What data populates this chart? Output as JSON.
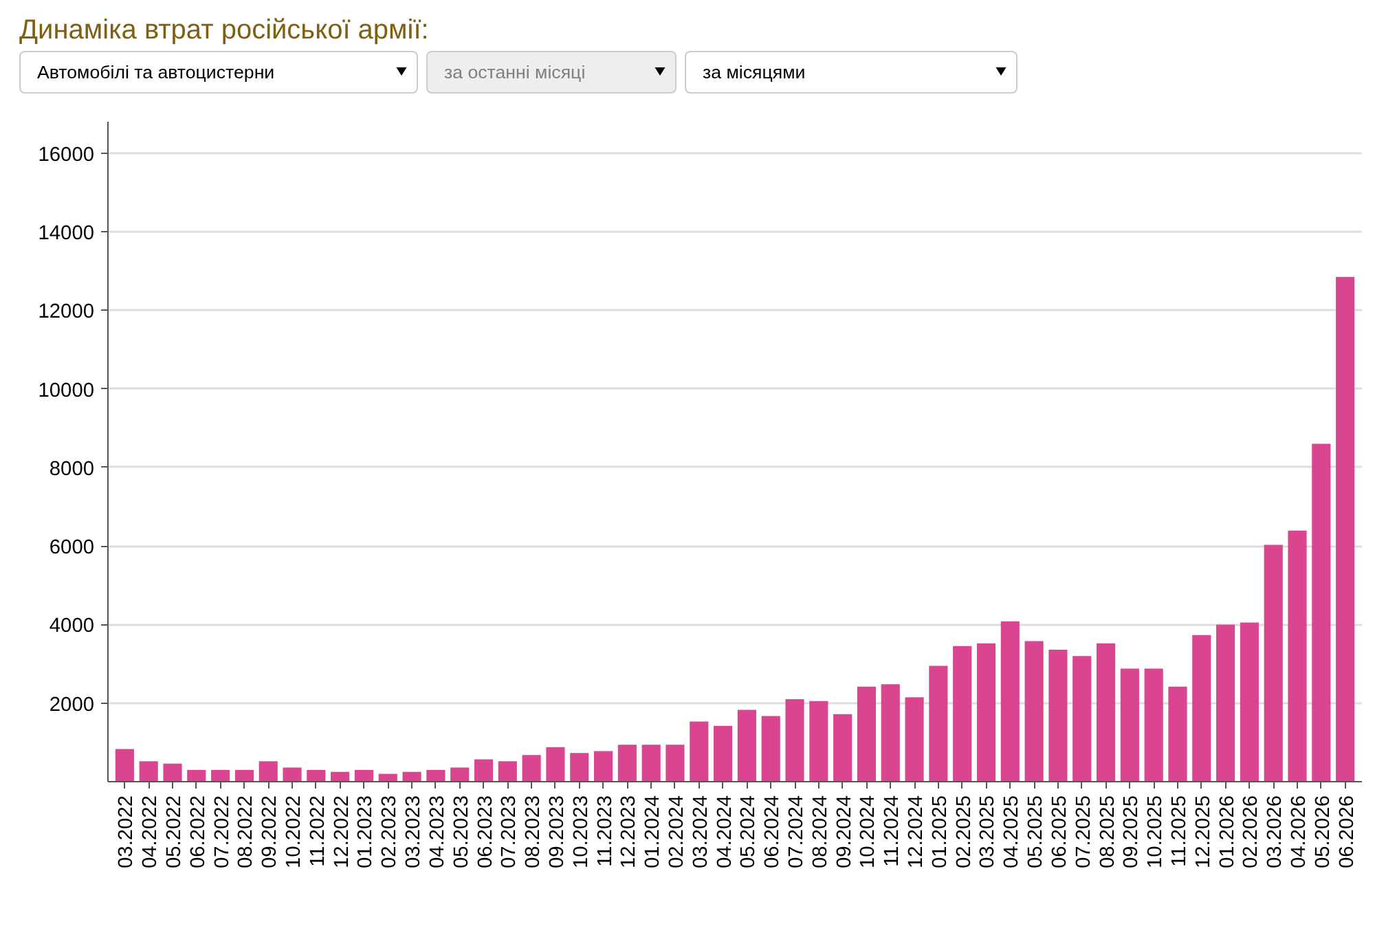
{
  "chart_data": {
    "type": "bar",
    "title": "Динаміка втрат російської армії:",
    "annotations": [
      "Автомобілі та автоцистерни",
      "за останні місяці",
      "за місяцями"
    ],
    "categories": [
      "03.2022",
      "04.2022",
      "05.2022",
      "06.2022",
      "07.2022",
      "08.2022",
      "09.2022",
      "10.2022",
      "11.2022",
      "12.2022",
      "01.2023",
      "02.2023",
      "03.2023",
      "04.2023",
      "05.2023",
      "06.2023",
      "07.2023",
      "08.2023",
      "09.2023",
      "10.2023",
      "11.2023",
      "12.2023",
      "01.2024",
      "02.2024",
      "03.2024",
      "04.2024",
      "05.2024",
      "06.2024",
      "07.2024",
      "08.2024",
      "09.2024",
      "10.2024",
      "11.2024",
      "12.2024",
      "01.2025",
      "02.2025",
      "03.2025",
      "04.2025",
      "05.2025",
      "06.2025",
      "07.2025",
      "08.2025",
      "09.2025",
      "10.2025",
      "11.2025",
      "12.2025",
      "01.2026",
      "02.2026",
      "03.2026",
      "04.2026",
      "05.2026",
      "06.2026"
    ],
    "values": [
      830,
      520,
      460,
      300,
      300,
      300,
      520,
      360,
      300,
      250,
      300,
      200,
      250,
      300,
      360,
      570,
      520,
      680,
      880,
      730,
      780,
      940,
      940,
      940,
      1530,
      1420,
      1830,
      1670,
      2100,
      2050,
      1720,
      2420,
      2480,
      2150,
      2950,
      3450,
      3520,
      4080,
      3580,
      3360,
      3200,
      3520,
      2880,
      2880,
      2420,
      3730,
      4000,
      4050,
      6030,
      6390,
      8600,
      12850
    ],
    "color": "#d9468f",
    "ylim": [
      0,
      16800
    ],
    "yticks": [
      2000,
      4000,
      6000,
      8000,
      10000,
      12000,
      14000,
      16000
    ],
    "grid": "y"
  }
}
